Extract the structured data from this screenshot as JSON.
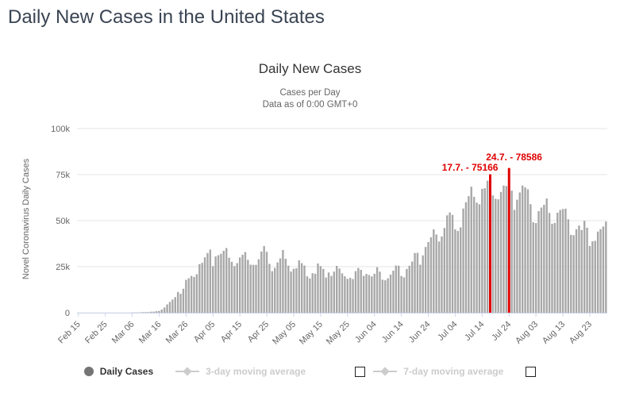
{
  "header": {
    "title": "Daily New Cases in the United States"
  },
  "chart_data": {
    "type": "bar",
    "title": "Daily New Cases",
    "subtitle1": "Cases per Day",
    "subtitle2": "Data as of 0:00 GMT+0",
    "ylabel": "Novel Coronavirus Daily Cases",
    "xlabel": "",
    "ylim": [
      0,
      100000
    ],
    "grid": true,
    "legend_position": "bottom",
    "series_name": "Daily Cases",
    "bar_color": "#a8a8a8",
    "highlight_color": "#e00000",
    "grid_color": "#e6e6e6",
    "axis_line_color": "#ccd6eb",
    "start_date": "Feb 15",
    "end_date": "Aug 29",
    "yticks": [
      {
        "label": "0",
        "value": 0
      },
      {
        "label": "25k",
        "value": 25000
      },
      {
        "label": "50k",
        "value": 50000
      },
      {
        "label": "75k",
        "value": 75000
      },
      {
        "label": "100k",
        "value": 100000
      }
    ],
    "xticks": [
      {
        "label": "Feb 15",
        "index": 0
      },
      {
        "label": "Feb 25",
        "index": 10
      },
      {
        "label": "Mar 06",
        "index": 20
      },
      {
        "label": "Mar 16",
        "index": 30
      },
      {
        "label": "Mar 26",
        "index": 40
      },
      {
        "label": "Apr 05",
        "index": 50
      },
      {
        "label": "Apr 15",
        "index": 60
      },
      {
        "label": "Apr 25",
        "index": 70
      },
      {
        "label": "May 05",
        "index": 80
      },
      {
        "label": "May 15",
        "index": 90
      },
      {
        "label": "May 25",
        "index": 100
      },
      {
        "label": "Jun 04",
        "index": 110
      },
      {
        "label": "Jun 14",
        "index": 120
      },
      {
        "label": "Jun 24",
        "index": 130
      },
      {
        "label": "Jul 04",
        "index": 140
      },
      {
        "label": "Jul 14",
        "index": 150
      },
      {
        "label": "Jul 24",
        "index": 160
      },
      {
        "label": "Aug 03",
        "index": 170
      },
      {
        "label": "Aug 13",
        "index": 180
      },
      {
        "label": "Aug 23",
        "index": 190
      }
    ],
    "annotations": [
      {
        "label": "17.7. - 75166",
        "index": 153,
        "value": 75166
      },
      {
        "label": "24.7. - 78586",
        "index": 160,
        "value": 78586
      }
    ],
    "values": [
      0,
      0,
      0,
      0,
      0,
      0,
      1,
      0,
      0,
      1,
      0,
      0,
      5,
      2,
      6,
      20,
      14,
      22,
      34,
      63,
      98,
      116,
      106,
      163,
      290,
      307,
      329,
      553,
      587,
      843,
      983,
      1748,
      2853,
      4499,
      5894,
      7123,
      8459,
      11236,
      10270,
      13002,
      17821,
      18695,
      19979,
      19408,
      20921,
      26365,
      27093,
      30082,
      32425,
      34272,
      25316,
      30561,
      31240,
      31997,
      33633,
      35098,
      29861,
      27620,
      25306,
      26930,
      30003,
      31451,
      32922,
      28710,
      26078,
      25995,
      25985,
      29026,
      33211,
      36188,
      33066,
      26509,
      22541,
      24315,
      27327,
      29510,
      34037,
      29288,
      25568,
      22335,
      23841,
      24128,
      28420,
      26906,
      25621,
      19731,
      18601,
      21467,
      21162,
      26722,
      25342,
      23792,
      19098,
      21841,
      19970,
      22303,
      25434,
      23961,
      21395,
      19790,
      18414,
      18910,
      18263,
      22577,
      24266,
      23290,
      20007,
      21040,
      20461,
      19699,
      21140,
      24720,
      22303,
      17919,
      17598,
      18664,
      20715,
      22800,
      25640,
      25540,
      19920,
      19221,
      23774,
      25513,
      27762,
      32411,
      32523,
      26079,
      31139,
      35695,
      38386,
      40949,
      45255,
      42486,
      38673,
      41390,
      46042,
      52898,
      54442,
      53126,
      45235,
      44361,
      46329,
      56567,
      60021,
      63286,
      68428,
      62918,
      59747,
      58858,
      67287,
      67600,
      71670,
      75166,
      63698,
      61848,
      61571,
      65594,
      69087,
      68823,
      78586,
      66281,
      55836,
      61355,
      65336,
      69034,
      68020,
      67023,
      58947,
      49110,
      48690,
      55148,
      57120,
      58611,
      62019,
      54184,
      48290,
      48769,
      54308,
      55784,
      56307,
      56500,
      50746,
      42301,
      42095,
      45342,
      47314,
      44881,
      49878,
      46155,
      36237,
      38766,
      39037,
      44062,
      45366,
      46807,
      49500
    ]
  },
  "legend": {
    "items": [
      {
        "label": "Daily Cases",
        "marker": "circle",
        "color": "#757575",
        "enabled": true
      },
      {
        "label": "3-day moving average",
        "marker": "line-diamond",
        "color": "#cccccc",
        "enabled": false,
        "checkbox": "unchecked"
      },
      {
        "label": "7-day moving average",
        "marker": "line-diamond",
        "color": "#cccccc",
        "enabled": false,
        "checkbox": "unchecked"
      }
    ]
  }
}
